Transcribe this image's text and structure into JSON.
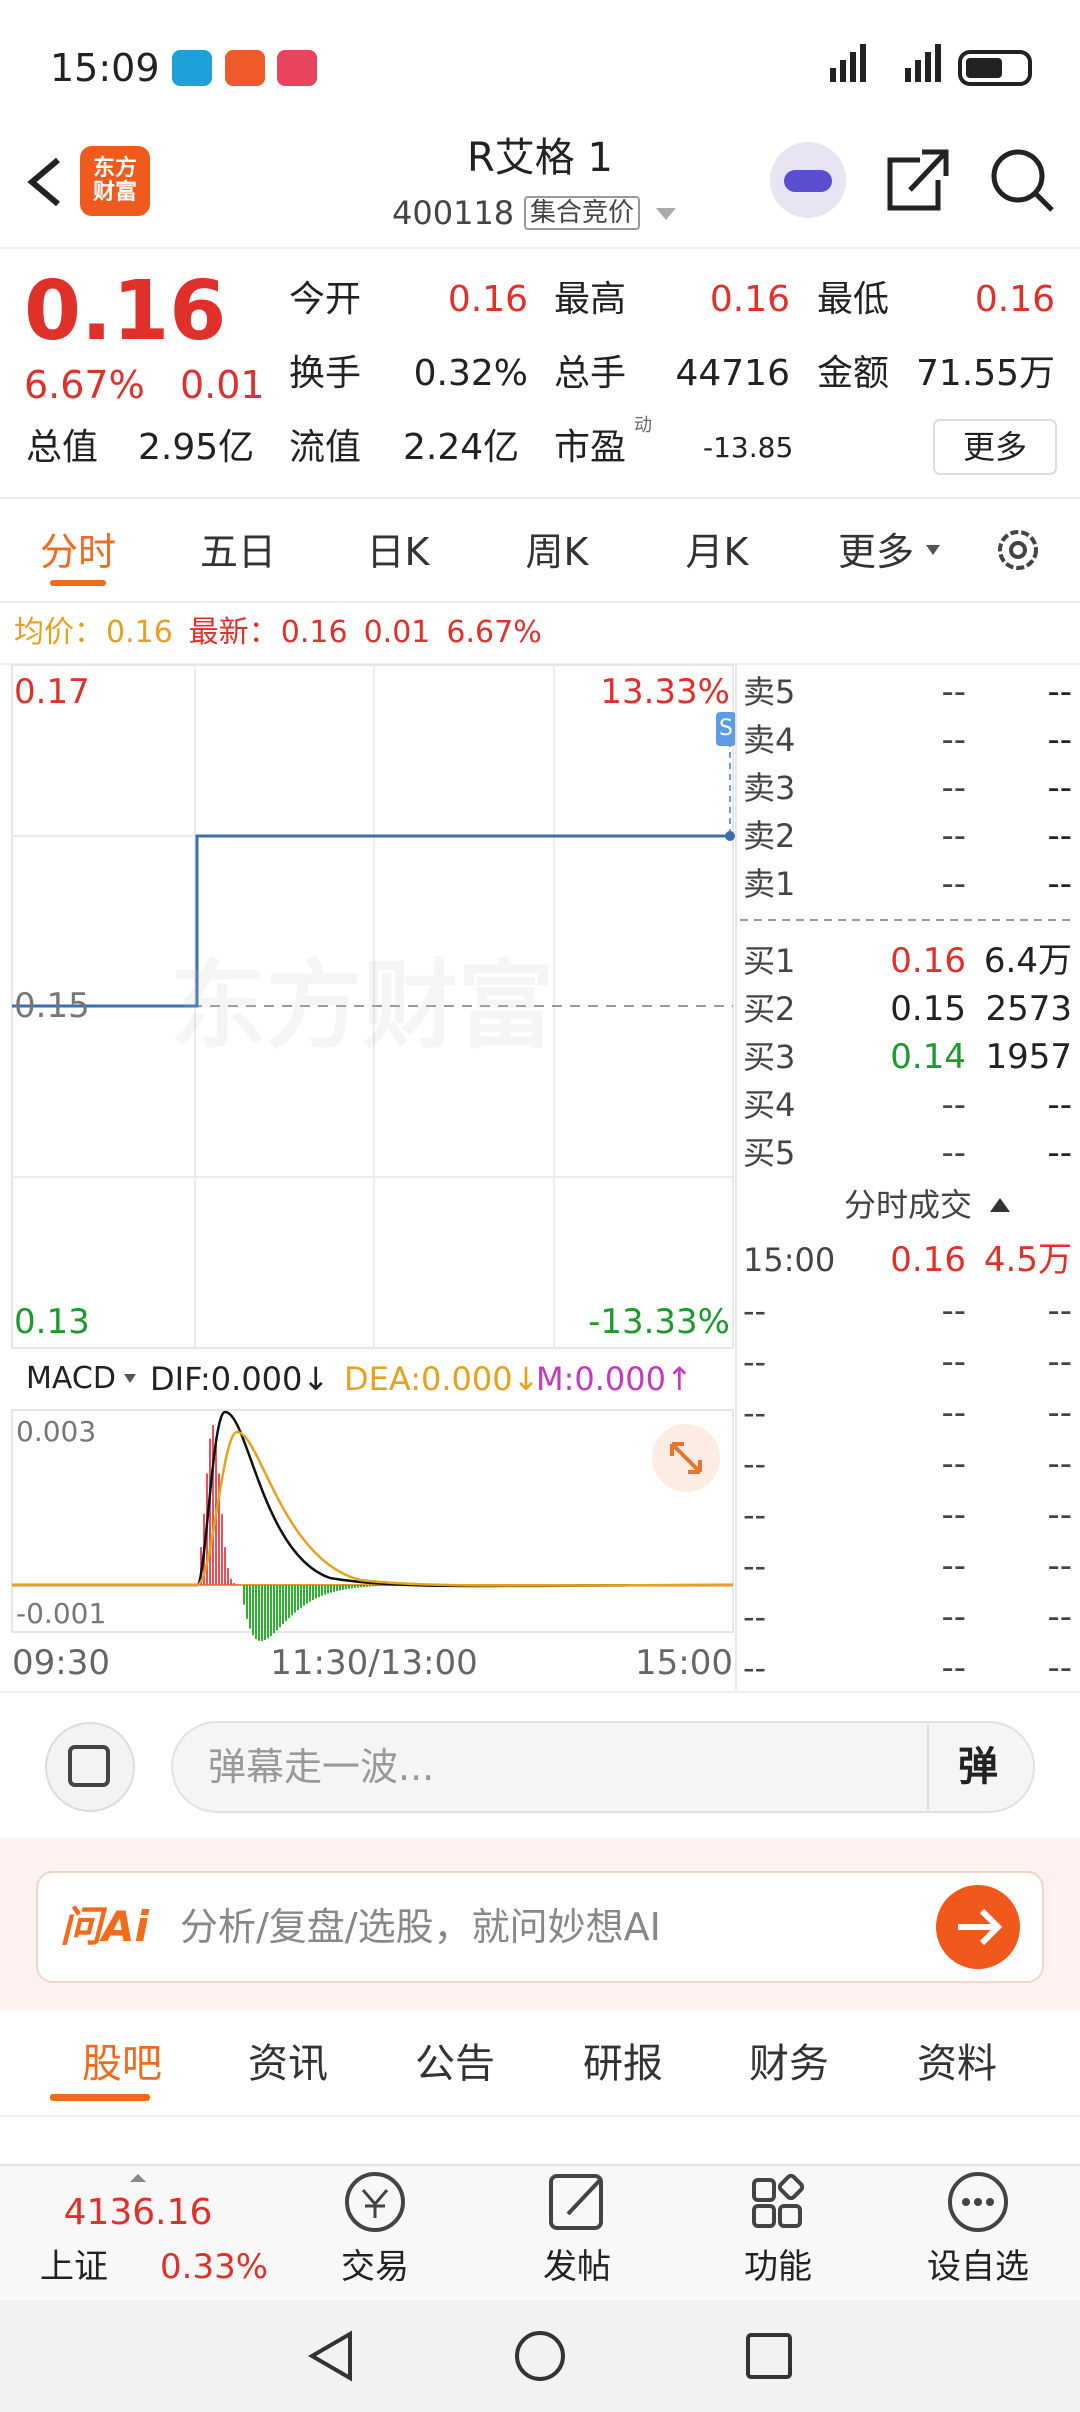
{
  "status_bar": {
    "time": "15:09"
  },
  "header": {
    "logo": "东方财富",
    "title": "R艾格 1",
    "code": "400118",
    "status": "集合竞价"
  },
  "quote": {
    "price": "0.16",
    "change_pct": "6.67%",
    "change": "0.01",
    "stats": [
      {
        "label": "今开",
        "value": "0.16"
      },
      {
        "label": "最高",
        "value": "0.16"
      },
      {
        "label": "最低",
        "value": "0.16"
      },
      {
        "label": "换手",
        "value": "0.32%"
      },
      {
        "label": "总手",
        "value": "44716"
      },
      {
        "label": "金额",
        "value": "71.55万"
      },
      {
        "label": "总值",
        "value": "2.95亿"
      },
      {
        "label": "流值",
        "value": "2.24亿"
      },
      {
        "label": "市盈",
        "value": "-13.85",
        "note": "动"
      }
    ],
    "more": "更多"
  },
  "tabs": [
    "分时",
    "五日",
    "日K",
    "周K",
    "月K",
    "更多"
  ],
  "summary": {
    "avg_label": "均价：",
    "avg": "0.16",
    "latest_label": "最新：",
    "latest": "0.16",
    "change": "0.01",
    "change_pct": "6.67%"
  },
  "chart": {
    "watermark": "东方财富",
    "price_labels": [
      "0.17",
      "0.15",
      "0.13"
    ],
    "pct_labels": [
      "13.33%",
      "-13.33%"
    ],
    "marker": "S",
    "macd": {
      "name": "MACD",
      "dif": "DIF:0.000↓",
      "dea": "DEA:0.000↓",
      "m": "M:0.000↑",
      "labels": [
        "0.003",
        "-0.001"
      ]
    },
    "time_labels": [
      "09:30",
      "11:30/13:00",
      "15:00"
    ]
  },
  "order_book": {
    "asks": [
      {
        "label": "卖5",
        "price": "--",
        "volume": "--"
      },
      {
        "label": "卖4",
        "price": "--",
        "volume": "--"
      },
      {
        "label": "卖3",
        "price": "--",
        "volume": "--"
      },
      {
        "label": "卖2",
        "price": "--",
        "volume": "--"
      },
      {
        "label": "卖1",
        "price": "--",
        "volume": "--"
      }
    ],
    "bids": [
      {
        "label": "买1",
        "price": "0.16",
        "volume": "6.4万"
      },
      {
        "label": "买2",
        "price": "0.15",
        "volume": "2573"
      },
      {
        "label": "买3",
        "price": "0.14",
        "volume": "1957"
      },
      {
        "label": "买4",
        "price": "--",
        "volume": "--"
      },
      {
        "label": "买5",
        "price": "--",
        "volume": "--"
      }
    ]
  },
  "trades": {
    "title": "分时成交",
    "rows": [
      {
        "time": "15:00",
        "price": "0.16",
        "volume": "4.5万"
      },
      {
        "time": "--",
        "price": "--",
        "volume": "--"
      },
      {
        "time": "--",
        "price": "--",
        "volume": "--"
      },
      {
        "time": "--",
        "price": "--",
        "volume": "--"
      },
      {
        "time": "--",
        "price": "--",
        "volume": "--"
      },
      {
        "time": "--",
        "price": "--",
        "volume": "--"
      },
      {
        "time": "--",
        "price": "--",
        "volume": "--"
      },
      {
        "time": "--",
        "price": "--",
        "volume": "--"
      },
      {
        "time": "--",
        "price": "--",
        "volume": "--"
      }
    ]
  },
  "comment": {
    "placeholder": "弹幕走一波...",
    "button": "弹"
  },
  "ai": {
    "logo": "问Ai",
    "placeholder": "分析/复盘/选股，就问妙想AI"
  },
  "forum_tabs": [
    "股吧",
    "资讯",
    "公告",
    "研报",
    "财务",
    "资料"
  ],
  "bottom_nav": {
    "index": {
      "value": "4136.16",
      "name": "上证",
      "change_pct": "0.33%"
    },
    "items": [
      "交易",
      "发帖",
      "功能",
      "设自选"
    ]
  }
}
